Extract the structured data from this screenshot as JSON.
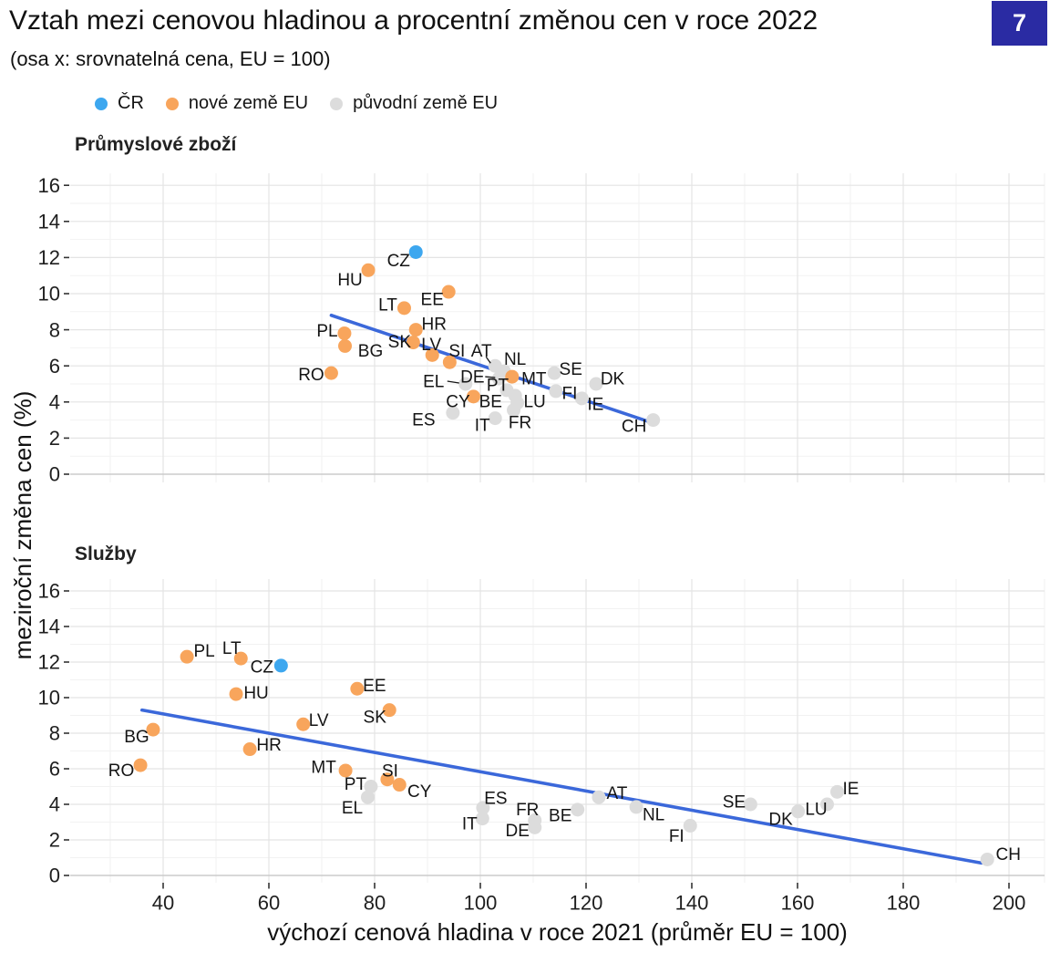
{
  "title": "Vztah mezi cenovou hladinou a procentní změnou cen v roce 2022",
  "subtitle": "(osa x: srovnatelná cena, EU = 100)",
  "badge": "7",
  "colors": {
    "cr": "#3da7ef",
    "new_eu": "#f8a55c",
    "old_eu": "#dcdcdc",
    "trend": "#3b68da",
    "badge_bg": "#2a2ba3",
    "badge_text": "#ffffff",
    "grid_major": "#e4e4e4",
    "grid_minor": "#f2f2f2",
    "grid_zero": "#cbcbcb",
    "tick": "#333333"
  },
  "legend": [
    {
      "label": "ČR",
      "color_key": "cr"
    },
    {
      "label": "nové země EU",
      "color_key": "new_eu"
    },
    {
      "label": "původní země EU",
      "color_key": "old_eu"
    }
  ],
  "x_axis": {
    "title": "výchozí cenová hladina v roce 2021 (průměr EU = 100)",
    "ticks": [
      40,
      60,
      80,
      100,
      120,
      140,
      160,
      180,
      200
    ]
  },
  "y_axis": {
    "title": "meziroční změna cen (%)",
    "ticks": [
      0,
      2,
      4,
      6,
      8,
      10,
      12,
      14,
      16
    ]
  },
  "chart_data": [
    {
      "type": "scatter",
      "title": "Průmyslové zboží",
      "xlabel": "výchozí cenová hladina v roce 2021 (průměr EU = 100)",
      "ylabel": "meziroční změna cen (%)",
      "xlim": [
        22,
        207
      ],
      "ylim": [
        -0.4,
        16.7
      ],
      "trend": {
        "x1": 71.8,
        "y1": 8.8,
        "x2": 133.0,
        "y2": 2.8
      },
      "series": [
        {
          "name": "ČR",
          "color_key": "cr",
          "points": [
            {
              "label": "CZ",
              "x": 87.8,
              "y": 12.3,
              "dx": -19,
              "dy": 9
            }
          ]
        },
        {
          "name": "nové země EU",
          "color_key": "new_eu",
          "points": [
            {
              "label": "HU",
              "x": 78.8,
              "y": 11.3,
              "dx": -20,
              "dy": 10
            },
            {
              "label": "EE",
              "x": 94.0,
              "y": 10.1,
              "dx": -18,
              "dy": 8
            },
            {
              "label": "LT",
              "x": 85.6,
              "y": 9.2,
              "dx": -18,
              "dy": -4
            },
            {
              "label": "HR",
              "x": 87.8,
              "y": 8.0,
              "dx": 20,
              "dy": -7
            },
            {
              "label": "PL",
              "x": 74.3,
              "y": 7.8,
              "dx": -19,
              "dy": -3
            },
            {
              "label": "SK",
              "x": 87.3,
              "y": 7.3,
              "dx": -15,
              "dy": -1
            },
            {
              "label": "BG",
              "x": 74.4,
              "y": 7.1,
              "dx": 28,
              "dy": 5
            },
            {
              "label": "LV",
              "x": 90.9,
              "y": 6.6,
              "dx": -1,
              "dy": -12
            },
            {
              "label": "SI",
              "x": 94.2,
              "y": 6.2,
              "dx": 8,
              "dy": -13
            },
            {
              "label": "RO",
              "x": 71.8,
              "y": 5.6,
              "dx": -22,
              "dy": 1
            },
            {
              "label": "MT",
              "x": 106.0,
              "y": 5.4,
              "dx": 24,
              "dy": 2
            },
            {
              "label": "CY",
              "x": 98.7,
              "y": 4.3,
              "dx": -17,
              "dy": 5
            }
          ]
        },
        {
          "name": "původní země EU",
          "color_key": "old_eu",
          "points": [
            {
              "label": "AT",
              "x": 102.8,
              "y": 6.0,
              "dx": -15,
              "dy": -17,
              "leader": [
                -10,
                -10,
                -5,
                -3
              ]
            },
            {
              "label": "NL",
              "x": 104.5,
              "y": 5.7,
              "dx": 12,
              "dy": -14
            },
            {
              "label": "SE",
              "x": 114.0,
              "y": 5.6,
              "dx": 18,
              "dy": -5
            },
            {
              "label": "DE",
              "x": 103.5,
              "y": 5.3,
              "dx": -29,
              "dy": -2,
              "leader": [
                -15,
                -2,
                -4,
                -1
              ]
            },
            {
              "label": "DK",
              "x": 121.9,
              "y": 5.0,
              "dx": 18,
              "dy": -6
            },
            {
              "label": "EL",
              "x": 97.2,
              "y": 5.0,
              "dx": -35,
              "dy": -3,
              "leader": [
                -20,
                -3,
                -7,
                -1
              ]
            },
            {
              "label": "PT",
              "x": 105.0,
              "y": 4.65,
              "dx": -10,
              "dy": -6
            },
            {
              "label": "FI",
              "x": 114.3,
              "y": 4.6,
              "dx": 15,
              "dy": 2
            },
            {
              "label": "BE",
              "x": 106.6,
              "y": 4.35,
              "dx": -27,
              "dy": 6
            },
            {
              "label": "IE",
              "x": 119.2,
              "y": 4.2,
              "dx": 15,
              "dy": 6
            },
            {
              "label": "LU",
              "x": 107.0,
              "y": 3.95,
              "dx": 19,
              "dy": -2
            },
            {
              "label": "FR",
              "x": 106.3,
              "y": 3.55,
              "dx": 7,
              "dy": 13
            },
            {
              "label": "ES",
              "x": 94.8,
              "y": 3.4,
              "dx": -32,
              "dy": 7
            },
            {
              "label": "IT",
              "x": 102.8,
              "y": 3.1,
              "dx": -14,
              "dy": 7
            },
            {
              "label": "CH",
              "x": 132.7,
              "y": 3.0,
              "dx": -21,
              "dy": 6
            }
          ]
        }
      ]
    },
    {
      "type": "scatter",
      "title": "Služby",
      "xlabel": "výchozí cenová hladina v roce 2021 (průměr EU = 100)",
      "ylabel": "meziroční změna cen (%)",
      "xlim": [
        22,
        207
      ],
      "ylim": [
        -0.4,
        16.7
      ],
      "trend": {
        "x1": 36.0,
        "y1": 9.3,
        "x2": 194.8,
        "y2": 0.7
      },
      "series": [
        {
          "name": "ČR",
          "color_key": "cr",
          "points": [
            {
              "label": "CZ",
              "x": 62.3,
              "y": 11.8,
              "dx": -21,
              "dy": 1
            }
          ]
        },
        {
          "name": "nové země EU",
          "color_key": "new_eu",
          "points": [
            {
              "label": "PL",
              "x": 44.5,
              "y": 12.3,
              "dx": 19,
              "dy": -7
            },
            {
              "label": "LT",
              "x": 54.7,
              "y": 12.2,
              "dx": -10,
              "dy": -12
            },
            {
              "label": "EE",
              "x": 76.7,
              "y": 10.5,
              "dx": 19,
              "dy": -4
            },
            {
              "label": "HU",
              "x": 53.8,
              "y": 10.2,
              "dx": 22,
              "dy": -2
            },
            {
              "label": "SK",
              "x": 82.8,
              "y": 9.3,
              "dx": -16,
              "dy": 7
            },
            {
              "label": "LV",
              "x": 66.5,
              "y": 8.5,
              "dx": 17,
              "dy": -5
            },
            {
              "label": "BG",
              "x": 38.1,
              "y": 8.2,
              "dx": -18,
              "dy": 7
            },
            {
              "label": "HR",
              "x": 56.4,
              "y": 7.1,
              "dx": 21,
              "dy": -5
            },
            {
              "label": "RO",
              "x": 35.7,
              "y": 6.2,
              "dx": -21,
              "dy": 5
            },
            {
              "label": "MT",
              "x": 74.5,
              "y": 5.9,
              "dx": -24,
              "dy": -4
            },
            {
              "label": "SI",
              "x": 82.4,
              "y": 5.4,
              "dx": 3,
              "dy": -10
            },
            {
              "label": "CY",
              "x": 84.7,
              "y": 5.1,
              "dx": 22,
              "dy": 7
            }
          ]
        },
        {
          "name": "původní země EU",
          "color_key": "old_eu",
          "points": [
            {
              "label": "PT",
              "x": 79.3,
              "y": 5.0,
              "dx": -17,
              "dy": -3
            },
            {
              "label": "EL",
              "x": 78.7,
              "y": 4.4,
              "dx": -17,
              "dy": 11
            },
            {
              "label": "ES",
              "x": 100.5,
              "y": 3.8,
              "dx": 14,
              "dy": -11
            },
            {
              "label": "IT",
              "x": 100.4,
              "y": 3.2,
              "dx": -14,
              "dy": 5
            },
            {
              "label": "FR",
              "x": 110.3,
              "y": 3.1,
              "dx": -8,
              "dy": -12
            },
            {
              "label": "DE",
              "x": 110.3,
              "y": 2.7,
              "dx": -19,
              "dy": 3
            },
            {
              "label": "BE",
              "x": 118.4,
              "y": 3.7,
              "dx": -19,
              "dy": 6
            },
            {
              "label": "AT",
              "x": 122.4,
              "y": 4.4,
              "dx": 20,
              "dy": -5
            },
            {
              "label": "NL",
              "x": 129.5,
              "y": 3.85,
              "dx": 19,
              "dy": 8
            },
            {
              "label": "FI",
              "x": 139.7,
              "y": 2.8,
              "dx": -15,
              "dy": 11
            },
            {
              "label": "SE",
              "x": 151.1,
              "y": 4.0,
              "dx": -18,
              "dy": -3
            },
            {
              "label": "DK",
              "x": 160.1,
              "y": 3.6,
              "dx": -19,
              "dy": 8
            },
            {
              "label": "LU",
              "x": 165.6,
              "y": 4.0,
              "dx": -12,
              "dy": 5
            },
            {
              "label": "IE",
              "x": 167.5,
              "y": 4.7,
              "dx": 15,
              "dy": -4
            },
            {
              "label": "CH",
              "x": 195.9,
              "y": 0.9,
              "dx": 23,
              "dy": -6
            }
          ]
        }
      ]
    }
  ]
}
